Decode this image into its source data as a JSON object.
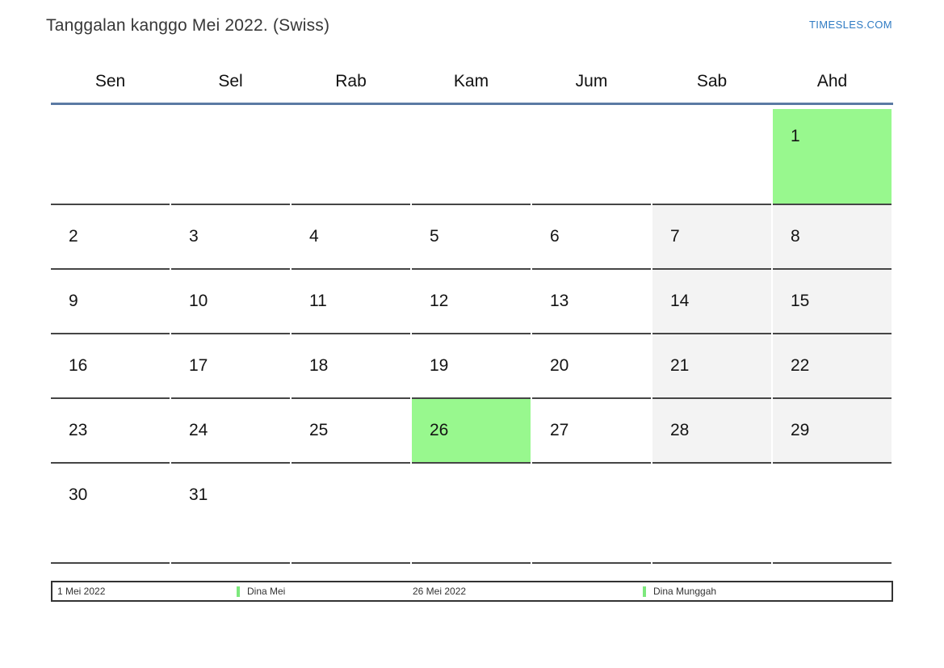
{
  "page": {
    "title": "Tanggalan kanggo Mei 2022. (Swiss)",
    "brand": "TIMESLES.COM"
  },
  "colors": {
    "holiday_green": "#98f88e",
    "weekend_gray": "#f3f3f3",
    "header_line_blue": "#5b7aa4",
    "grid_line_gray": "#454545",
    "brand_blue": "#2f7bc3",
    "legend_marker_green": "#7de87d",
    "legend_border": "#333333"
  },
  "calendar": {
    "month": "Mei",
    "year": "2022",
    "weekday_headers": [
      "Sen",
      "Sel",
      "Rab",
      "Kam",
      "Jum",
      "Sab",
      "Ahd"
    ],
    "weeks": [
      [
        {
          "d": "",
          "t": "empty"
        },
        {
          "d": "",
          "t": "empty"
        },
        {
          "d": "",
          "t": "empty"
        },
        {
          "d": "",
          "t": "empty"
        },
        {
          "d": "",
          "t": "empty"
        },
        {
          "d": "",
          "t": "empty"
        },
        {
          "d": "1",
          "t": "holiday"
        }
      ],
      [
        {
          "d": "2",
          "t": "normal"
        },
        {
          "d": "3",
          "t": "normal"
        },
        {
          "d": "4",
          "t": "normal"
        },
        {
          "d": "5",
          "t": "normal"
        },
        {
          "d": "6",
          "t": "normal"
        },
        {
          "d": "7",
          "t": "weekend"
        },
        {
          "d": "8",
          "t": "weekend"
        }
      ],
      [
        {
          "d": "9",
          "t": "normal"
        },
        {
          "d": "10",
          "t": "normal"
        },
        {
          "d": "11",
          "t": "normal"
        },
        {
          "d": "12",
          "t": "normal"
        },
        {
          "d": "13",
          "t": "normal"
        },
        {
          "d": "14",
          "t": "weekend"
        },
        {
          "d": "15",
          "t": "weekend"
        }
      ],
      [
        {
          "d": "16",
          "t": "normal"
        },
        {
          "d": "17",
          "t": "normal"
        },
        {
          "d": "18",
          "t": "normal"
        },
        {
          "d": "19",
          "t": "normal"
        },
        {
          "d": "20",
          "t": "normal"
        },
        {
          "d": "21",
          "t": "weekend"
        },
        {
          "d": "22",
          "t": "weekend"
        }
      ],
      [
        {
          "d": "23",
          "t": "normal"
        },
        {
          "d": "24",
          "t": "normal"
        },
        {
          "d": "25",
          "t": "normal"
        },
        {
          "d": "26",
          "t": "holiday"
        },
        {
          "d": "27",
          "t": "normal"
        },
        {
          "d": "28",
          "t": "weekend"
        },
        {
          "d": "29",
          "t": "weekend"
        }
      ],
      [
        {
          "d": "30",
          "t": "normal"
        },
        {
          "d": "31",
          "t": "normal"
        },
        {
          "d": "",
          "t": "empty"
        },
        {
          "d": "",
          "t": "empty"
        },
        {
          "d": "",
          "t": "empty"
        },
        {
          "d": "",
          "t": "empty"
        },
        {
          "d": "",
          "t": "empty"
        }
      ]
    ]
  },
  "legend": {
    "items": [
      {
        "text": "1 Mei 2022",
        "marker": false
      },
      {
        "text": "Dina Mei",
        "marker": true
      },
      {
        "text": "26 Mei 2022",
        "marker": false
      },
      {
        "text": "Dina Munggah",
        "marker": true
      }
    ]
  }
}
